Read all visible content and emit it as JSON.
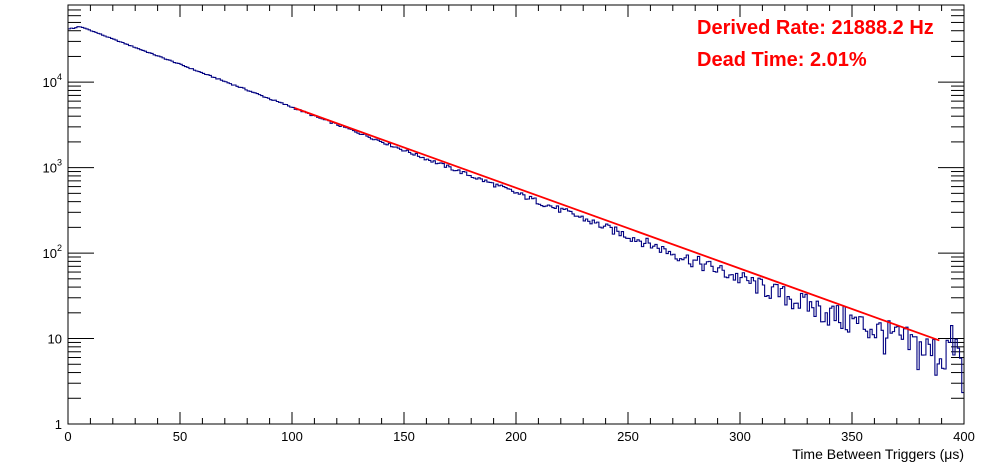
{
  "chart_data": {
    "type": "line",
    "title": "",
    "xlabel": "Time Between Triggers (μs)",
    "ylabel": "",
    "xlim": [
      0,
      400
    ],
    "ylim": [
      1,
      80000
    ],
    "yscale": "log",
    "grid": false,
    "x_ticks": [
      0,
      50,
      100,
      150,
      200,
      250,
      300,
      350,
      400
    ],
    "x_tick_labels": [
      "0",
      "50",
      "100",
      "150",
      "200",
      "250",
      "300",
      "350",
      "400"
    ],
    "y_ticks": [
      1,
      10,
      100,
      1000,
      10000
    ],
    "y_tick_labels": [
      {
        "base": "1",
        "exp": ""
      },
      {
        "base": "10",
        "exp": ""
      },
      {
        "base": "10",
        "exp": "2"
      },
      {
        "base": "10",
        "exp": "3"
      },
      {
        "base": "10",
        "exp": "4"
      }
    ],
    "series": [
      {
        "color": "#000080",
        "style": "histogram",
        "x": [
          0,
          2,
          3,
          4,
          5,
          8,
          10,
          20,
          30,
          40,
          50,
          60,
          70,
          80,
          90,
          100,
          110,
          120,
          130,
          140,
          150,
          160,
          170,
          180,
          190,
          200,
          210,
          220,
          230,
          240,
          250,
          260,
          270,
          280,
          290,
          300,
          310,
          320,
          330,
          340,
          350,
          360,
          370,
          380,
          390,
          395,
          398,
          400
        ],
        "values": [
          42000,
          43000,
          42000,
          45000,
          44500,
          42500,
          40500,
          32000,
          25500,
          20300,
          16200,
          12800,
          10200,
          8100,
          6400,
          5100,
          4000,
          3200,
          2550,
          2020,
          1600,
          1270,
          1010,
          800,
          640,
          505,
          400,
          320,
          255,
          200,
          160,
          127,
          100,
          80,
          64,
          51,
          40,
          32,
          25,
          20,
          16,
          13,
          10,
          8,
          6.4,
          10,
          6,
          2
        ]
      },
      {
        "color": "#ff0000",
        "style": "fit",
        "x": [
          101,
          389
        ],
        "values": [
          5000,
          9.5
        ]
      }
    ],
    "annotations": [
      {
        "text": "Derived Rate: 21888.2 Hz",
        "color": "#ff0000"
      },
      {
        "text": "Dead Time: 2.01%",
        "color": "#ff0000"
      }
    ]
  }
}
